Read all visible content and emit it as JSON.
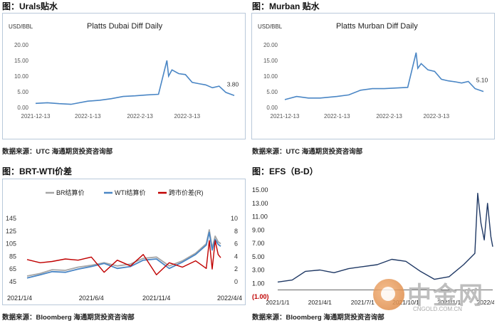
{
  "panels": {
    "urals": {
      "title": "图：Urals贴水",
      "source": "数据来源：UTC   海通期货投资咨询部"
    },
    "murban": {
      "title": "图：Murban 贴水",
      "source": "数据来源：UTC   海通期货投资咨询部"
    },
    "brtwti": {
      "title": "图：BRT-WTI价差",
      "source": "数据来源：Bloomberg   海通期货投资咨询部"
    },
    "efs": {
      "title": "图：EFS（B-D）",
      "source": "数据来源：Bloomberg   海通期货投资咨询部"
    }
  },
  "watermark": {
    "chinese": "中金网",
    "domain": "CNGOLD.COM.CN",
    "tagline": "中金网"
  },
  "colors": {
    "blue_series": "#4a86c5",
    "red_series": "#c00000",
    "gray_series": "#a6a6a6",
    "navy_series": "#1f3864",
    "axis_text": "#555555",
    "negative_label": "#c00000"
  },
  "chart_data": [
    {
      "id": "urals",
      "type": "line",
      "title": "Platts Dubai Diff Daily",
      "unit_label": "USD/BBL",
      "ylim": [
        0,
        20
      ],
      "yticks": [
        "0.00",
        "5.00",
        "10.00",
        "15.00",
        "20.00"
      ],
      "xticks": [
        "2021-12-13",
        "2022-1-13",
        "2022-2-13",
        "2022-3-13"
      ],
      "x": [
        "2021-12-13",
        "2021-12-20",
        "2021-12-27",
        "2022-01-03",
        "2022-01-13",
        "2022-01-20",
        "2022-01-27",
        "2022-02-03",
        "2022-02-10",
        "2022-02-17",
        "2022-02-24",
        "2022-03-01",
        "2022-03-02",
        "2022-03-04",
        "2022-03-08",
        "2022-03-12",
        "2022-03-16",
        "2022-03-20",
        "2022-03-24",
        "2022-03-28",
        "2022-04-01",
        "2022-04-05",
        "2022-04-10"
      ],
      "series": [
        {
          "values": [
            1.3,
            1.5,
            1.2,
            1.0,
            2.0,
            2.3,
            2.8,
            3.5,
            3.7,
            4.0,
            4.2,
            15.0,
            10.0,
            12.0,
            10.8,
            10.5,
            8.0,
            7.6,
            7.2,
            6.3,
            6.8,
            4.8,
            3.8
          ]
        }
      ],
      "last_label": "3.80",
      "grid": false
    },
    {
      "id": "murban",
      "type": "line",
      "title": "Platts Murban Diff Daily",
      "unit_label": "USD/BBL",
      "ylim": [
        0,
        20
      ],
      "yticks": [
        "0.00",
        "5.00",
        "10.00",
        "15.00",
        "20.00"
      ],
      "xticks": [
        "2021-12-13",
        "2022-1-13",
        "2022-2-13",
        "2022-3-13"
      ],
      "x": [
        "2021-12-13",
        "2021-12-20",
        "2021-12-27",
        "2022-01-03",
        "2022-01-13",
        "2022-01-20",
        "2022-01-27",
        "2022-02-03",
        "2022-02-10",
        "2022-02-17",
        "2022-02-24",
        "2022-03-01",
        "2022-03-02",
        "2022-03-04",
        "2022-03-08",
        "2022-03-12",
        "2022-03-16",
        "2022-03-20",
        "2022-03-24",
        "2022-03-28",
        "2022-04-01",
        "2022-04-05",
        "2022-04-10"
      ],
      "series": [
        {
          "values": [
            2.5,
            3.5,
            3.0,
            3.0,
            3.5,
            4.0,
            5.5,
            6.0,
            6.0,
            6.2,
            6.4,
            17.5,
            12.5,
            14.0,
            12.0,
            11.5,
            9.0,
            8.5,
            8.2,
            7.8,
            8.3,
            6.0,
            5.1
          ]
        }
      ],
      "last_label": "5.10",
      "grid": false
    },
    {
      "id": "brtwti",
      "type": "line",
      "title": "",
      "ylim_left": [
        45,
        145
      ],
      "yticks_left": [
        "45",
        "65",
        "85",
        "105",
        "125",
        "145"
      ],
      "ylim_right": [
        0,
        10
      ],
      "yticks_right": [
        "0",
        "2",
        "4",
        "6",
        "8",
        "10"
      ],
      "xticks": [
        "2021/1/4",
        "2021/6/4",
        "2021/11/4",
        "2022/4/4"
      ],
      "legend": [
        "BR结算价",
        "WTI结算价",
        "跨市价差(R)"
      ],
      "legend_position": "top",
      "x": [
        "2021-01-04",
        "2021-02-04",
        "2021-03-04",
        "2021-04-04",
        "2021-05-04",
        "2021-06-04",
        "2021-07-04",
        "2021-08-04",
        "2021-09-04",
        "2021-10-04",
        "2021-11-04",
        "2021-12-04",
        "2022-01-04",
        "2022-02-04",
        "2022-03-01",
        "2022-03-08",
        "2022-03-15",
        "2022-03-22",
        "2022-03-29",
        "2022-04-04"
      ],
      "series": [
        {
          "name": "BR结算价",
          "axis": "left",
          "values": [
            54,
            58,
            64,
            63,
            68,
            71,
            75,
            70,
            73,
            82,
            84,
            70,
            78,
            90,
            105,
            127,
            98,
            117,
            108,
            105
          ]
        },
        {
          "name": "WTI结算价",
          "axis": "left",
          "values": [
            51,
            56,
            61,
            60,
            65,
            69,
            74,
            66,
            69,
            79,
            81,
            66,
            76,
            88,
            103,
            123,
            95,
            112,
            104,
            101
          ]
        },
        {
          "name": "跨市价差(R)",
          "axis": "right",
          "values": [
            3.5,
            3.0,
            3.2,
            3.6,
            3.4,
            3.9,
            1.5,
            3.4,
            2.5,
            4.3,
            1.1,
            3.0,
            2.3,
            3.3,
            2.1,
            6.5,
            2.0,
            6.5,
            4.3,
            3.8
          ]
        }
      ],
      "grid": false
    },
    {
      "id": "efs",
      "type": "line",
      "title": "",
      "ylim": [
        -1,
        15
      ],
      "yticks": [
        "(1.00)",
        "1.00",
        "3.00",
        "5.00",
        "7.00",
        "9.00",
        "11.00",
        "13.00",
        "15.00"
      ],
      "xticks": [
        "2021/1/1",
        "2021/4/1",
        "2021/7/1",
        "2021/10/1",
        "2022/1/1",
        "2022/4/1"
      ],
      "x": [
        "2021-01-01",
        "2021-02-01",
        "2021-03-01",
        "2021-04-01",
        "2021-05-01",
        "2021-06-01",
        "2021-07-01",
        "2021-08-01",
        "2021-09-01",
        "2021-10-01",
        "2021-11-01",
        "2021-12-01",
        "2022-01-01",
        "2022-02-01",
        "2022-02-25",
        "2022-03-03",
        "2022-03-10",
        "2022-03-17",
        "2022-03-24",
        "2022-03-31",
        "2022-04-04"
      ],
      "series": [
        {
          "name": "EFS",
          "values": [
            1.2,
            1.5,
            2.8,
            3.0,
            2.6,
            3.2,
            3.5,
            3.8,
            4.6,
            4.3,
            2.8,
            1.6,
            2.0,
            3.8,
            5.5,
            14.5,
            10.0,
            7.5,
            13.0,
            8.0,
            6.5
          ]
        }
      ],
      "grid": false
    }
  ]
}
